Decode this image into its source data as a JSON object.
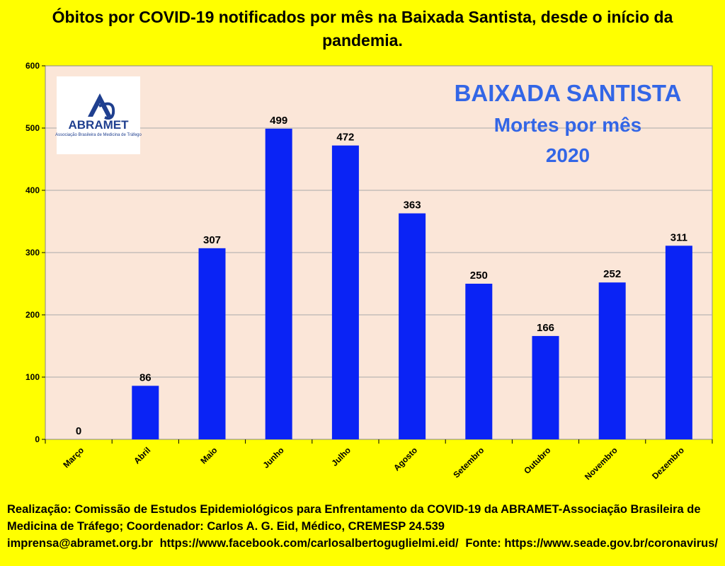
{
  "header": {
    "title": "Óbitos por COVID-19 notificados por mês na Baixada Santista, desde o início da pandemia."
  },
  "logo": {
    "name": "ABRAMET",
    "subtitle": "Associação Brasileira de Medicina de Tráfego"
  },
  "annotation": {
    "line1": "BAIXADA SANTISTA",
    "line2": "Mortes por mês",
    "line3": "2020"
  },
  "chart_data": {
    "type": "bar",
    "title": "Óbitos por COVID-19 notificados por mês na Baixada Santista, desde o início da pandemia.",
    "categories": [
      "Março",
      "Abril",
      "Maio",
      "Junho",
      "Julho",
      "Agosto",
      "Setembro",
      "Outubro",
      "Novembro",
      "Dezembro"
    ],
    "values": [
      0,
      86,
      307,
      499,
      472,
      363,
      250,
      166,
      252,
      311
    ],
    "data_labels": [
      "0",
      "86",
      "307",
      "499",
      "472",
      "363",
      "250",
      "166",
      "252",
      "311"
    ],
    "yticks": [
      "0",
      "100",
      "200",
      "300",
      "400",
      "500",
      "600"
    ],
    "ylim": [
      0,
      600
    ],
    "xlabel": "",
    "ylabel": "",
    "grid": true,
    "colors": {
      "bar": "#0a23f5",
      "plot_bg": "#fbe6d8",
      "page_bg": "#ffff00",
      "annotation": "#3366e6"
    }
  },
  "footer": {
    "line1": "Realização: Comissão de Estudos Epidemiológicos para Enfrentamento da COVID-19 da ABRAMET-Associação Brasileira de Medicina de Tráfego; Coordenador: Carlos A. G. Eid, Médico, CREMESP 24.539",
    "email": "imprensa@abramet.org.br",
    "facebook": "https://www.facebook.com/carlosalbertoguglielmi.eid/",
    "source": "Fonte: https://www.seade.gov.br/coronavirus/"
  }
}
